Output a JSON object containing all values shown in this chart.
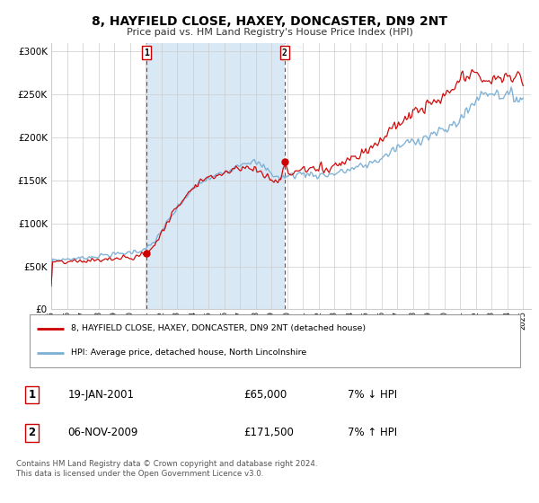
{
  "title": "8, HAYFIELD CLOSE, HAXEY, DONCASTER, DN9 2NT",
  "subtitle": "Price paid vs. HM Land Registry's House Price Index (HPI)",
  "sale1_date": "19-JAN-2001",
  "sale1_price": 65000,
  "sale1_label": "7% ↓ HPI",
  "sale2_date": "06-NOV-2009",
  "sale2_price": 171500,
  "sale2_label": "7% ↑ HPI",
  "legend1": "8, HAYFIELD CLOSE, HAXEY, DONCASTER, DN9 2NT (detached house)",
  "legend2": "HPI: Average price, detached house, North Lincolnshire",
  "footer": "Contains HM Land Registry data © Crown copyright and database right 2024.\nThis data is licensed under the Open Government Licence v3.0.",
  "hpi_color": "#7BAFD4",
  "price_color": "#CC0000",
  "shade_color": "#D8E8F5",
  "grid_color": "#CCCCCC",
  "bg_color": "#FFFFFF",
  "ylim": [
    0,
    310000
  ],
  "yticks": [
    0,
    50000,
    100000,
    150000,
    200000,
    250000,
    300000
  ],
  "xmin": 1995.0,
  "xmax": 2025.5,
  "sale1_x": 2001.054,
  "sale2_x": 2009.844,
  "hpi_key": [
    [
      1995.0,
      58000
    ],
    [
      1995.5,
      57500
    ],
    [
      1996.0,
      58500
    ],
    [
      1996.5,
      59000
    ],
    [
      1997.0,
      60000
    ],
    [
      1997.5,
      61000
    ],
    [
      1998.0,
      62000
    ],
    [
      1998.5,
      63500
    ],
    [
      1999.0,
      64000
    ],
    [
      1999.5,
      65000
    ],
    [
      2000.0,
      66500
    ],
    [
      2000.5,
      68000
    ],
    [
      2001.0,
      70000
    ],
    [
      2001.5,
      78000
    ],
    [
      2002.0,
      92000
    ],
    [
      2002.5,
      105000
    ],
    [
      2003.0,
      118000
    ],
    [
      2003.5,
      130000
    ],
    [
      2004.0,
      140000
    ],
    [
      2004.5,
      148000
    ],
    [
      2005.0,
      152000
    ],
    [
      2005.5,
      156000
    ],
    [
      2006.0,
      160000
    ],
    [
      2006.5,
      165000
    ],
    [
      2007.0,
      170000
    ],
    [
      2007.5,
      172000
    ],
    [
      2008.0,
      170000
    ],
    [
      2008.5,
      165000
    ],
    [
      2009.0,
      158000
    ],
    [
      2009.5,
      152000
    ],
    [
      2010.0,
      155000
    ],
    [
      2010.5,
      157000
    ],
    [
      2011.0,
      158000
    ],
    [
      2011.5,
      157000
    ],
    [
      2012.0,
      156000
    ],
    [
      2012.5,
      156500
    ],
    [
      2013.0,
      158000
    ],
    [
      2013.5,
      160000
    ],
    [
      2014.0,
      163000
    ],
    [
      2014.5,
      165000
    ],
    [
      2015.0,
      168000
    ],
    [
      2015.5,
      172000
    ],
    [
      2016.0,
      176000
    ],
    [
      2016.5,
      182000
    ],
    [
      2017.0,
      188000
    ],
    [
      2017.5,
      193000
    ],
    [
      2018.0,
      196000
    ],
    [
      2018.5,
      199000
    ],
    [
      2019.0,
      202000
    ],
    [
      2019.5,
      205000
    ],
    [
      2020.0,
      208000
    ],
    [
      2020.5,
      215000
    ],
    [
      2021.0,
      222000
    ],
    [
      2021.5,
      232000
    ],
    [
      2022.0,
      245000
    ],
    [
      2022.5,
      252000
    ],
    [
      2023.0,
      253000
    ],
    [
      2023.5,
      250000
    ],
    [
      2024.0,
      248000
    ],
    [
      2024.5,
      247000
    ],
    [
      2025.0,
      246000
    ]
  ],
  "price_key": [
    [
      1995.0,
      55000
    ],
    [
      1995.5,
      54500
    ],
    [
      1996.0,
      55000
    ],
    [
      1996.5,
      55500
    ],
    [
      1997.0,
      56000
    ],
    [
      1997.5,
      57000
    ],
    [
      1998.0,
      57500
    ],
    [
      1998.5,
      58000
    ],
    [
      1999.0,
      58500
    ],
    [
      1999.5,
      59500
    ],
    [
      2000.0,
      60000
    ],
    [
      2000.5,
      62000
    ],
    [
      2001.0,
      65000
    ],
    [
      2001.5,
      74000
    ],
    [
      2002.0,
      90000
    ],
    [
      2002.5,
      106000
    ],
    [
      2003.0,
      120000
    ],
    [
      2003.5,
      133000
    ],
    [
      2004.0,
      143000
    ],
    [
      2004.5,
      150000
    ],
    [
      2005.0,
      153000
    ],
    [
      2005.5,
      156000
    ],
    [
      2006.0,
      160000
    ],
    [
      2006.5,
      163000
    ],
    [
      2007.0,
      166000
    ],
    [
      2007.5,
      164000
    ],
    [
      2008.0,
      162000
    ],
    [
      2008.5,
      157000
    ],
    [
      2009.0,
      151000
    ],
    [
      2009.5,
      148000
    ],
    [
      2009.844,
      171500
    ],
    [
      2010.0,
      158000
    ],
    [
      2010.5,
      160000
    ],
    [
      2011.0,
      163000
    ],
    [
      2011.5,
      163000
    ],
    [
      2012.0,
      163000
    ],
    [
      2012.5,
      165000
    ],
    [
      2013.0,
      168000
    ],
    [
      2013.5,
      172000
    ],
    [
      2014.0,
      176000
    ],
    [
      2014.5,
      180000
    ],
    [
      2015.0,
      185000
    ],
    [
      2015.5,
      192000
    ],
    [
      2016.0,
      198000
    ],
    [
      2016.5,
      207000
    ],
    [
      2017.0,
      215000
    ],
    [
      2017.5,
      222000
    ],
    [
      2018.0,
      228000
    ],
    [
      2018.5,
      233000
    ],
    [
      2019.0,
      237000
    ],
    [
      2019.5,
      242000
    ],
    [
      2020.0,
      246000
    ],
    [
      2020.5,
      256000
    ],
    [
      2021.0,
      266000
    ],
    [
      2021.5,
      272000
    ],
    [
      2022.0,
      272000
    ],
    [
      2022.5,
      268000
    ],
    [
      2023.0,
      265000
    ],
    [
      2023.5,
      268000
    ],
    [
      2024.0,
      272000
    ],
    [
      2024.5,
      270000
    ],
    [
      2025.0,
      268000
    ]
  ]
}
